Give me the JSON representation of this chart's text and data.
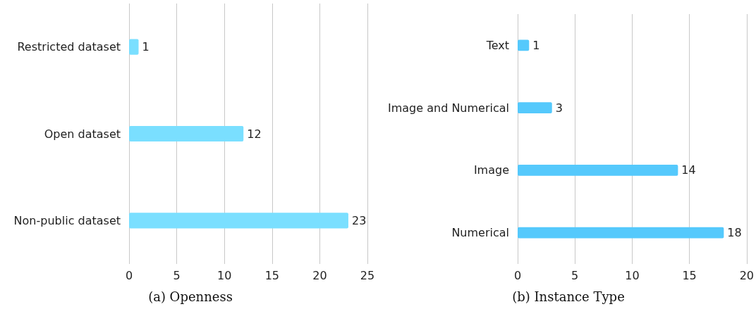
{
  "chart_data": [
    {
      "type": "bar",
      "orientation": "horizontal",
      "title": "(a) Openness",
      "categories": [
        "Restricted dataset",
        "Open dataset",
        "Non-public dataset"
      ],
      "values": [
        1,
        12,
        23
      ],
      "color": "#7adfff",
      "xlim": [
        0,
        25
      ],
      "xticks": [
        0,
        5,
        10,
        15,
        20,
        25
      ],
      "grid": "x",
      "data_labels": true
    },
    {
      "type": "bar",
      "orientation": "horizontal",
      "title": "(b) Instance Type",
      "categories": [
        "Text",
        "Image and Numerical",
        "Image",
        "Numerical"
      ],
      "values": [
        1,
        3,
        14,
        18
      ],
      "color": "#55c9fc",
      "xlim": [
        0,
        20
      ],
      "xticks": [
        0,
        5,
        10,
        15,
        20
      ],
      "grid": "x",
      "data_labels": true
    }
  ]
}
